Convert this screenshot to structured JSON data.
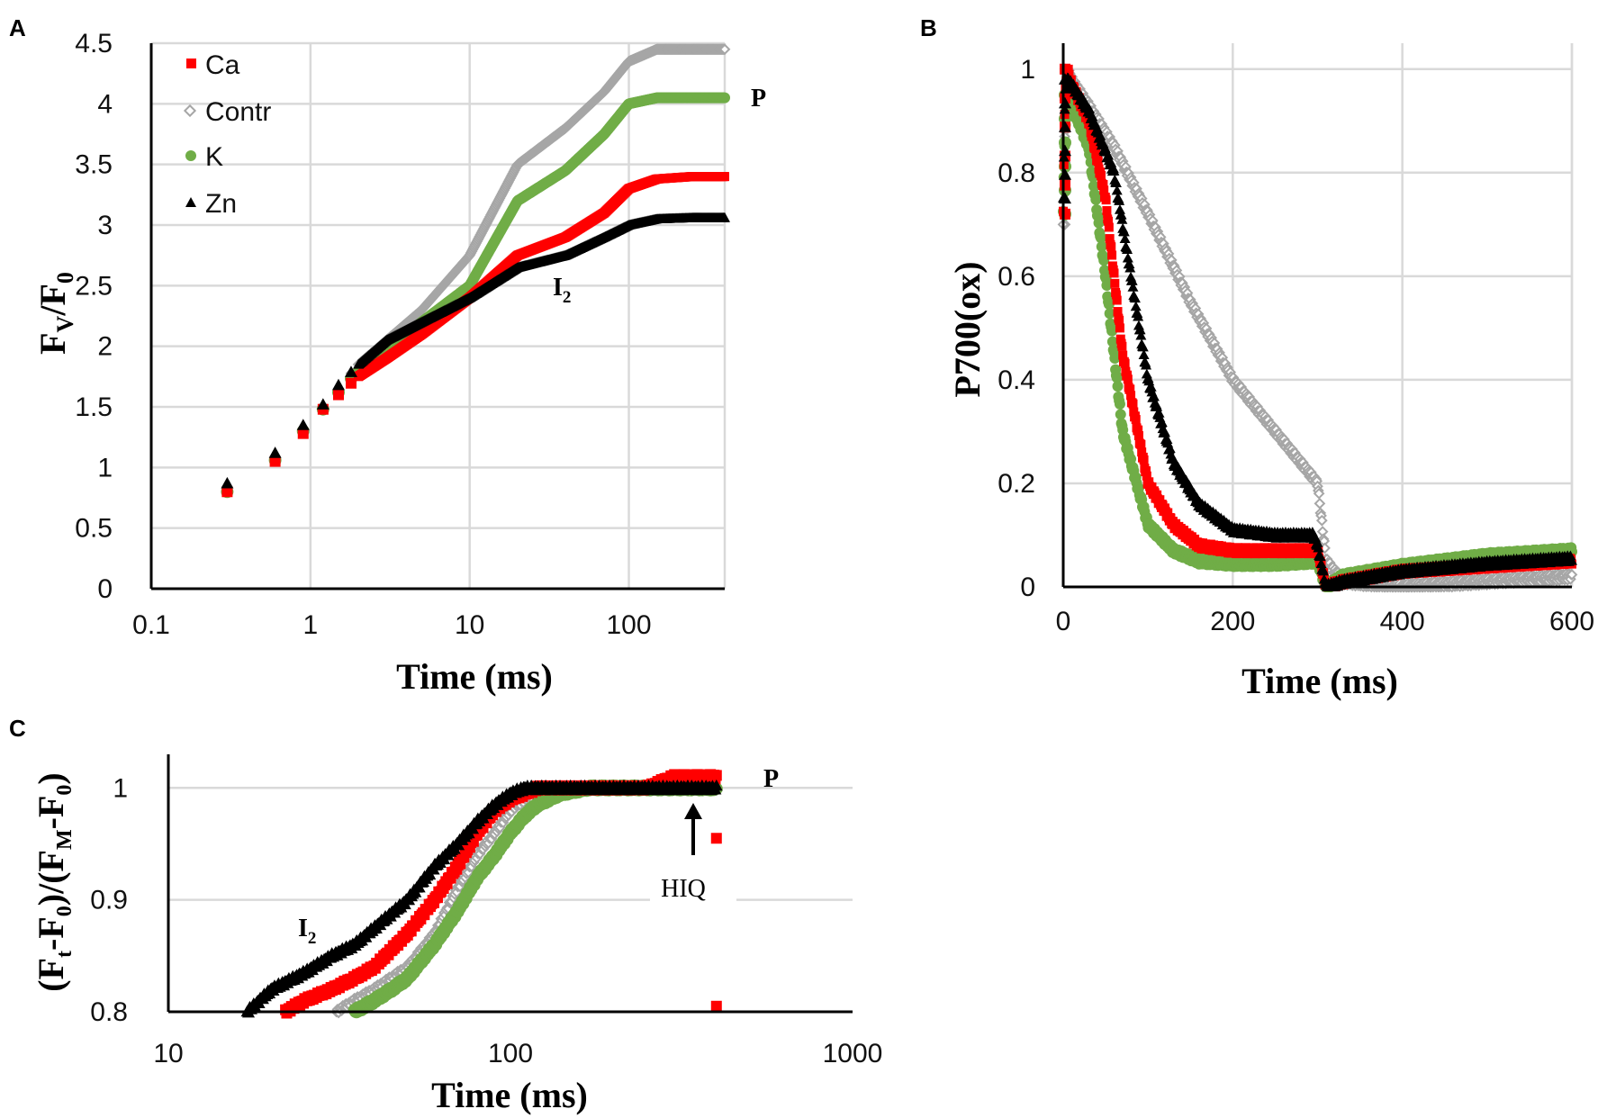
{
  "colors": {
    "Ca": "#ff0000",
    "Contr": "#a6a6a6",
    "K": "#70ad47",
    "Zn": "#000000",
    "grid": "#d9d9d9"
  },
  "chart_data": [
    {
      "id": "A",
      "type": "scatter",
      "panel_label": "A",
      "xscale": "log",
      "xlabel": "Time (ms)",
      "ylabel_main": "F",
      "ylabel_sub1": "V",
      "ylabel_sep": "/F",
      "ylabel_sub2": "0",
      "xlim": [
        0.1,
        400
      ],
      "ylim": [
        0,
        4.5
      ],
      "xticks": [
        0.1,
        1,
        10,
        100
      ],
      "xtick_labels": [
        "0.1",
        "1",
        "10",
        "100"
      ],
      "yticks": [
        0,
        0.5,
        1,
        1.5,
        2,
        2.5,
        3,
        3.5,
        4,
        4.5
      ],
      "ytick_labels": [
        "0",
        "0.5",
        "1",
        "1.5",
        "2",
        "2.5",
        "3",
        "3.5",
        "4",
        "4.5"
      ],
      "legend": [
        "Ca",
        "Contr",
        "K",
        "Zn"
      ],
      "annotations": [
        {
          "text": "P",
          "x": 230,
          "y": 4.0
        },
        {
          "text": "I",
          "sub": "2",
          "x": 18,
          "y": 2.4
        }
      ],
      "series": [
        {
          "name": "Ca",
          "x": [
            0.3,
            0.6,
            0.9,
            1.2,
            1.5,
            2,
            3,
            5,
            10,
            20,
            40,
            70,
            100,
            150,
            250,
            400
          ],
          "y": [
            0.8,
            1.05,
            1.28,
            1.48,
            1.6,
            1.75,
            1.9,
            2.1,
            2.4,
            2.75,
            2.9,
            3.1,
            3.3,
            3.38,
            3.4,
            3.4
          ]
        },
        {
          "name": "Contr",
          "x": [
            0.3,
            0.6,
            0.9,
            1.2,
            1.5,
            2,
            3,
            5,
            10,
            20,
            40,
            70,
            100,
            150,
            250,
            400
          ],
          "y": [
            0.82,
            1.08,
            1.32,
            1.5,
            1.65,
            1.85,
            2.05,
            2.3,
            2.75,
            3.5,
            3.8,
            4.1,
            4.35,
            4.45,
            4.45,
            4.45
          ]
        },
        {
          "name": "K",
          "x": [
            0.3,
            0.6,
            0.9,
            1.2,
            1.5,
            2,
            3,
            5,
            10,
            20,
            40,
            70,
            100,
            150,
            250,
            400
          ],
          "y": [
            0.8,
            1.06,
            1.3,
            1.48,
            1.62,
            1.8,
            1.95,
            2.2,
            2.5,
            3.2,
            3.45,
            3.75,
            4.0,
            4.05,
            4.05,
            4.05
          ]
        },
        {
          "name": "Zn",
          "x": [
            0.3,
            0.6,
            0.9,
            1.2,
            1.5,
            2,
            3,
            5,
            10,
            20,
            40,
            70,
            100,
            150,
            250,
            400
          ],
          "y": [
            0.87,
            1.12,
            1.35,
            1.52,
            1.68,
            1.85,
            2.05,
            2.2,
            2.4,
            2.65,
            2.75,
            2.9,
            3.0,
            3.05,
            3.06,
            3.06
          ]
        }
      ]
    },
    {
      "id": "B",
      "type": "scatter",
      "panel_label": "B",
      "xscale": "linear",
      "xlabel": "Time (ms)",
      "ylabel": "P700(ox)",
      "xlim": [
        0,
        600
      ],
      "ylim": [
        0,
        1.05
      ],
      "xticks": [
        0,
        200,
        400,
        600
      ],
      "xtick_labels": [
        "0",
        "200",
        "400",
        "600"
      ],
      "yticks": [
        0,
        0.2,
        0.4,
        0.6,
        0.8,
        1
      ],
      "ytick_labels": [
        "0",
        "0.2",
        "0.4",
        "0.6",
        "0.8",
        "1"
      ],
      "series": [
        {
          "name": "Contr",
          "x": [
            0,
            2,
            5,
            10,
            30,
            60,
            100,
            150,
            200,
            250,
            295,
            300,
            310,
            330,
            400,
            500,
            600
          ],
          "y": [
            0.7,
            0.9,
            1.0,
            0.98,
            0.93,
            0.85,
            0.72,
            0.55,
            0.4,
            0.3,
            0.21,
            0.2,
            0.05,
            0.01,
            0.0,
            0.01,
            0.02
          ]
        },
        {
          "name": "K",
          "x": [
            0,
            2,
            5,
            10,
            30,
            50,
            70,
            100,
            130,
            160,
            200,
            250,
            300,
            310,
            330,
            400,
            500,
            600
          ],
          "y": [
            0.72,
            0.88,
            0.95,
            0.93,
            0.85,
            0.6,
            0.3,
            0.12,
            0.07,
            0.05,
            0.045,
            0.045,
            0.05,
            0.0,
            0.02,
            0.04,
            0.06,
            0.07
          ]
        },
        {
          "name": "Ca",
          "x": [
            0,
            2,
            5,
            10,
            30,
            50,
            70,
            100,
            130,
            160,
            200,
            250,
            300,
            310,
            330,
            400,
            500,
            600
          ],
          "y": [
            0.72,
            0.95,
            1.0,
            0.97,
            0.9,
            0.75,
            0.45,
            0.2,
            0.12,
            0.08,
            0.07,
            0.07,
            0.07,
            0.0,
            0.01,
            0.03,
            0.04,
            0.05
          ]
        },
        {
          "name": "Zn",
          "x": [
            0,
            2,
            5,
            10,
            30,
            60,
            80,
            100,
            130,
            160,
            200,
            250,
            295,
            300,
            310,
            330,
            400,
            500,
            600
          ],
          "y": [
            0.75,
            0.95,
            0.98,
            0.97,
            0.92,
            0.8,
            0.6,
            0.4,
            0.24,
            0.16,
            0.11,
            0.1,
            0.1,
            0.08,
            0.0,
            0.01,
            0.03,
            0.045,
            0.055
          ]
        }
      ]
    },
    {
      "id": "C",
      "type": "scatter",
      "panel_label": "C",
      "xscale": "log",
      "xlabel": "Time (ms)",
      "ylabel": "(Ft-F0)/(FM-F0)",
      "ylabel_parts": [
        "(F",
        "t",
        "-F",
        "0",
        ")/(F",
        "M",
        "-F",
        "0",
        ")"
      ],
      "xlim": [
        10,
        1000
      ],
      "ylim": [
        0.8,
        1.03
      ],
      "xticks": [
        10,
        100,
        1000
      ],
      "xtick_labels": [
        "10",
        "100",
        "1000"
      ],
      "yticks": [
        0.8,
        0.9,
        1
      ],
      "ytick_labels": [
        "0.8",
        "0.9",
        "1"
      ],
      "annotations": [
        {
          "text": "P",
          "x": 520,
          "y": 1.005
        },
        {
          "text": "HIQ",
          "x": 340,
          "y": 0.92
        },
        {
          "text": "I",
          "sub": "2",
          "x": 20,
          "y": 0.87
        }
      ],
      "series": [
        {
          "name": "Contr",
          "x": [
            31,
            35,
            40,
            50,
            60,
            70,
            80,
            90,
            100,
            110,
            120,
            140,
            170,
            200,
            250,
            300,
            350,
            400
          ],
          "y": [
            0.8,
            0.81,
            0.82,
            0.84,
            0.87,
            0.91,
            0.94,
            0.96,
            0.98,
            0.99,
            0.995,
            1.0,
            1.0,
            1.0,
            1.0,
            1.0,
            1.0,
            1.0
          ]
        },
        {
          "name": "K",
          "x": [
            35,
            40,
            45,
            50,
            60,
            70,
            80,
            90,
            100,
            110,
            120,
            140,
            170,
            200,
            250,
            300,
            350,
            400
          ],
          "y": [
            0.8,
            0.81,
            0.82,
            0.83,
            0.86,
            0.89,
            0.92,
            0.94,
            0.96,
            0.975,
            0.985,
            0.995,
            1.0,
            1.0,
            1.0,
            1.0,
            1.0,
            1.0
          ]
        },
        {
          "name": "Ca",
          "x": [
            22,
            25,
            30,
            35,
            40,
            50,
            60,
            70,
            80,
            90,
            100,
            110,
            120,
            140,
            170,
            200,
            250,
            300,
            350,
            400
          ],
          "y": [
            0.8,
            0.81,
            0.82,
            0.83,
            0.84,
            0.87,
            0.9,
            0.93,
            0.96,
            0.98,
            0.99,
            0.995,
            1.0,
            1.0,
            1.0,
            1.0,
            1.0,
            1.01,
            1.01,
            1.01
          ],
          "extra": [
            {
              "x": 400,
              "y": 0.955
            },
            {
              "x": 400,
              "y": 0.805
            }
          ]
        },
        {
          "name": "Zn",
          "x": [
            17,
            20,
            25,
            30,
            35,
            40,
            50,
            60,
            70,
            80,
            90,
            100,
            110,
            120,
            140,
            170,
            200,
            250,
            300,
            350,
            400
          ],
          "y": [
            0.8,
            0.82,
            0.835,
            0.85,
            0.86,
            0.875,
            0.9,
            0.93,
            0.95,
            0.97,
            0.985,
            0.995,
            1.0,
            1.0,
            1.0,
            1.0,
            1.0,
            1.0,
            1.0,
            1.0,
            1.0
          ]
        }
      ]
    }
  ]
}
